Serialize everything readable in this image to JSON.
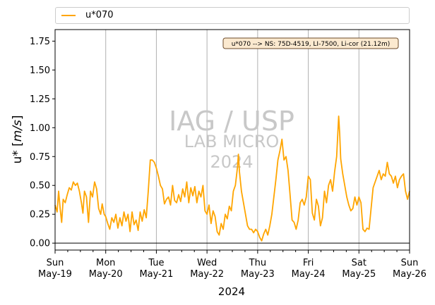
{
  "chart_data": {
    "type": "line",
    "xlabel": "2024",
    "ylabel": "u* [m/s]",
    "ylim": [
      -0.06,
      1.85
    ],
    "yticks": [
      0.0,
      0.25,
      0.5,
      0.75,
      1.0,
      1.25,
      1.5,
      1.75
    ],
    "ytick_labels": [
      "0.00",
      "0.25",
      "0.50",
      "0.75",
      "1.00",
      "1.25",
      "1.50",
      "1.75"
    ],
    "x_range_days": [
      0,
      7
    ],
    "xticks": [
      {
        "day": "Sun",
        "date": "May-19"
      },
      {
        "day": "Mon",
        "date": "May-20"
      },
      {
        "day": "Tue",
        "date": "May-21"
      },
      {
        "day": "Wed",
        "date": "May-22"
      },
      {
        "day": "Thu",
        "date": "May-23"
      },
      {
        "day": "Fri",
        "date": "May-24"
      },
      {
        "day": "Sat",
        "date": "May-25"
      },
      {
        "day": "Sun",
        "date": "May-26"
      }
    ],
    "grid": "vertical at day boundaries",
    "legend_position": "top, above plot",
    "annotation": "u*070 --> NS: 75D-4519, LI-7500, Li-cor (21.12m)",
    "watermark": [
      "IAG / USP",
      "LAB MICRO",
      "2024"
    ],
    "series": [
      {
        "name": "u*070",
        "color": "#ffa500",
        "points": [
          [
            0.0,
            0.33
          ],
          [
            0.04,
            0.27
          ],
          [
            0.07,
            0.45
          ],
          [
            0.1,
            0.3
          ],
          [
            0.13,
            0.18
          ],
          [
            0.16,
            0.38
          ],
          [
            0.2,
            0.35
          ],
          [
            0.24,
            0.42
          ],
          [
            0.28,
            0.48
          ],
          [
            0.32,
            0.46
          ],
          [
            0.36,
            0.53
          ],
          [
            0.4,
            0.5
          ],
          [
            0.44,
            0.52
          ],
          [
            0.48,
            0.45
          ],
          [
            0.52,
            0.35
          ],
          [
            0.55,
            0.26
          ],
          [
            0.58,
            0.45
          ],
          [
            0.62,
            0.4
          ],
          [
            0.66,
            0.18
          ],
          [
            0.7,
            0.45
          ],
          [
            0.74,
            0.4
          ],
          [
            0.78,
            0.53
          ],
          [
            0.82,
            0.47
          ],
          [
            0.86,
            0.3
          ],
          [
            0.9,
            0.25
          ],
          [
            0.93,
            0.34
          ],
          [
            0.97,
            0.25
          ],
          [
            1.0,
            0.23
          ],
          [
            1.04,
            0.17
          ],
          [
            1.08,
            0.12
          ],
          [
            1.12,
            0.22
          ],
          [
            1.16,
            0.18
          ],
          [
            1.2,
            0.25
          ],
          [
            1.24,
            0.13
          ],
          [
            1.28,
            0.22
          ],
          [
            1.32,
            0.15
          ],
          [
            1.36,
            0.27
          ],
          [
            1.4,
            0.19
          ],
          [
            1.44,
            0.25
          ],
          [
            1.48,
            0.1
          ],
          [
            1.52,
            0.27
          ],
          [
            1.56,
            0.16
          ],
          [
            1.6,
            0.2
          ],
          [
            1.64,
            0.11
          ],
          [
            1.68,
            0.27
          ],
          [
            1.72,
            0.19
          ],
          [
            1.76,
            0.29
          ],
          [
            1.8,
            0.22
          ],
          [
            1.84,
            0.45
          ],
          [
            1.88,
            0.72
          ],
          [
            1.92,
            0.72
          ],
          [
            1.96,
            0.7
          ],
          [
            2.0,
            0.65
          ],
          [
            2.04,
            0.58
          ],
          [
            2.08,
            0.5
          ],
          [
            2.12,
            0.47
          ],
          [
            2.16,
            0.34
          ],
          [
            2.2,
            0.38
          ],
          [
            2.24,
            0.4
          ],
          [
            2.28,
            0.33
          ],
          [
            2.32,
            0.5
          ],
          [
            2.36,
            0.37
          ],
          [
            2.4,
            0.35
          ],
          [
            2.44,
            0.42
          ],
          [
            2.48,
            0.36
          ],
          [
            2.52,
            0.47
          ],
          [
            2.56,
            0.4
          ],
          [
            2.6,
            0.53
          ],
          [
            2.64,
            0.35
          ],
          [
            2.68,
            0.48
          ],
          [
            2.72,
            0.41
          ],
          [
            2.76,
            0.49
          ],
          [
            2.8,
            0.35
          ],
          [
            2.84,
            0.45
          ],
          [
            2.88,
            0.4
          ],
          [
            2.92,
            0.5
          ],
          [
            2.96,
            0.28
          ],
          [
            3.0,
            0.25
          ],
          [
            3.04,
            0.33
          ],
          [
            3.08,
            0.17
          ],
          [
            3.12,
            0.28
          ],
          [
            3.16,
            0.23
          ],
          [
            3.2,
            0.1
          ],
          [
            3.24,
            0.07
          ],
          [
            3.28,
            0.17
          ],
          [
            3.32,
            0.12
          ],
          [
            3.36,
            0.25
          ],
          [
            3.4,
            0.21
          ],
          [
            3.44,
            0.32
          ],
          [
            3.48,
            0.28
          ],
          [
            3.52,
            0.45
          ],
          [
            3.56,
            0.5
          ],
          [
            3.6,
            0.65
          ],
          [
            3.62,
            0.77
          ],
          [
            3.64,
            0.62
          ],
          [
            3.68,
            0.45
          ],
          [
            3.72,
            0.35
          ],
          [
            3.76,
            0.25
          ],
          [
            3.8,
            0.15
          ],
          [
            3.84,
            0.12
          ],
          [
            3.88,
            0.12
          ],
          [
            3.92,
            0.09
          ],
          [
            3.96,
            0.12
          ],
          [
            4.0,
            0.1
          ],
          [
            4.04,
            0.05
          ],
          [
            4.08,
            0.02
          ],
          [
            4.12,
            0.08
          ],
          [
            4.16,
            0.12
          ],
          [
            4.2,
            0.07
          ],
          [
            4.24,
            0.15
          ],
          [
            4.28,
            0.25
          ],
          [
            4.32,
            0.4
          ],
          [
            4.36,
            0.55
          ],
          [
            4.4,
            0.72
          ],
          [
            4.44,
            0.8
          ],
          [
            4.48,
            0.9
          ],
          [
            4.52,
            0.72
          ],
          [
            4.56,
            0.75
          ],
          [
            4.6,
            0.63
          ],
          [
            4.64,
            0.42
          ],
          [
            4.68,
            0.2
          ],
          [
            4.72,
            0.18
          ],
          [
            4.76,
            0.12
          ],
          [
            4.8,
            0.2
          ],
          [
            4.84,
            0.35
          ],
          [
            4.88,
            0.38
          ],
          [
            4.92,
            0.33
          ],
          [
            4.96,
            0.4
          ],
          [
            5.0,
            0.58
          ],
          [
            5.04,
            0.55
          ],
          [
            5.08,
            0.26
          ],
          [
            5.12,
            0.2
          ],
          [
            5.16,
            0.38
          ],
          [
            5.2,
            0.32
          ],
          [
            5.24,
            0.15
          ],
          [
            5.28,
            0.22
          ],
          [
            5.32,
            0.45
          ],
          [
            5.36,
            0.35
          ],
          [
            5.4,
            0.5
          ],
          [
            5.44,
            0.55
          ],
          [
            5.48,
            0.45
          ],
          [
            5.52,
            0.62
          ],
          [
            5.56,
            0.75
          ],
          [
            5.6,
            1.1
          ],
          [
            5.62,
            0.95
          ],
          [
            5.64,
            0.73
          ],
          [
            5.68,
            0.6
          ],
          [
            5.72,
            0.5
          ],
          [
            5.76,
            0.4
          ],
          [
            5.8,
            0.33
          ],
          [
            5.84,
            0.28
          ],
          [
            5.88,
            0.3
          ],
          [
            5.92,
            0.4
          ],
          [
            5.96,
            0.33
          ],
          [
            6.0,
            0.4
          ],
          [
            6.04,
            0.35
          ],
          [
            6.08,
            0.12
          ],
          [
            6.12,
            0.1
          ],
          [
            6.16,
            0.13
          ],
          [
            6.2,
            0.12
          ],
          [
            6.24,
            0.3
          ],
          [
            6.28,
            0.48
          ],
          [
            6.32,
            0.53
          ],
          [
            6.36,
            0.58
          ],
          [
            6.4,
            0.63
          ],
          [
            6.44,
            0.55
          ],
          [
            6.48,
            0.6
          ],
          [
            6.52,
            0.58
          ],
          [
            6.56,
            0.7
          ],
          [
            6.6,
            0.6
          ],
          [
            6.64,
            0.58
          ],
          [
            6.68,
            0.52
          ],
          [
            6.72,
            0.58
          ],
          [
            6.76,
            0.48
          ],
          [
            6.8,
            0.55
          ],
          [
            6.84,
            0.58
          ],
          [
            6.88,
            0.6
          ],
          [
            6.92,
            0.45
          ],
          [
            6.96,
            0.38
          ],
          [
            7.0,
            0.45
          ]
        ]
      }
    ]
  },
  "legend": {
    "label": "u*070"
  }
}
